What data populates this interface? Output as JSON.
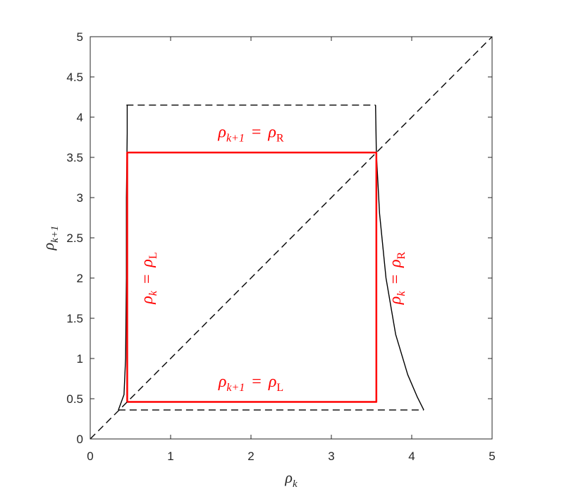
{
  "chart_data": {
    "type": "line",
    "title": "",
    "xlabel": {
      "base": "ρ",
      "sub": "k"
    },
    "ylabel": {
      "base": "ρ",
      "sub": "k+1"
    },
    "xlim": [
      0,
      5
    ],
    "ylim": [
      0,
      5
    ],
    "grid": false,
    "x_ticks": [
      0,
      1,
      2,
      3,
      4,
      5
    ],
    "x_tick_labels": [
      "0",
      "1",
      "2",
      "3",
      "4",
      "5"
    ],
    "y_ticks": [
      0,
      0.5,
      1,
      1.5,
      2,
      2.5,
      3,
      3.5,
      4,
      4.5,
      5
    ],
    "y_tick_labels": [
      "0",
      "0.5",
      "1",
      "1.5",
      "2",
      "2.5",
      "3",
      "3.5",
      "4",
      "4.5",
      "5"
    ],
    "colors": {
      "red_box": "#ff0000",
      "black": "#000000",
      "axis": "#262626"
    },
    "series": [
      {
        "style": "dashed",
        "color": "#000000",
        "x": [
          0,
          5
        ],
        "y": [
          0,
          5
        ]
      },
      {
        "style": "dashed",
        "color": "#000000",
        "x": [
          0.45,
          3.55
        ],
        "y": [
          4.15,
          4.15
        ]
      },
      {
        "style": "dashed",
        "color": "#000000",
        "x": [
          0.35,
          4.15
        ],
        "y": [
          0.36,
          0.36
        ]
      },
      {
        "style": "solid",
        "color": "#000000",
        "x": [
          0.35,
          0.42,
          0.44,
          0.45,
          0.45,
          0.46,
          0.46
        ],
        "y": [
          0.36,
          0.55,
          1.0,
          2.0,
          3.0,
          3.8,
          4.15
        ]
      },
      {
        "style": "solid",
        "color": "#000000",
        "x": [
          3.55,
          3.56,
          3.6,
          3.68,
          3.8,
          3.95,
          4.07,
          4.15
        ],
        "y": [
          4.15,
          3.55,
          2.8,
          2.0,
          1.3,
          0.8,
          0.52,
          0.36
        ]
      },
      {
        "style": "solid",
        "color": "#ff0000",
        "x": [
          0.46,
          3.56,
          3.56,
          0.46,
          0.46
        ],
        "y": [
          0.46,
          0.46,
          3.56,
          3.56,
          0.46
        ]
      }
    ],
    "annotations": [
      {
        "base": "ρ",
        "sub": "k+1",
        "eq": "=",
        "rhs": "ρ",
        "rhs_sub": "R",
        "x": 2.0,
        "y": 3.75,
        "rotate": false
      },
      {
        "base": "ρ",
        "sub": "k+1",
        "eq": "=",
        "rhs": "ρ",
        "rhs_sub": "L",
        "x": 2.0,
        "y": 0.65,
        "rotate": false
      },
      {
        "base": "ρ",
        "sub": "k",
        "eq": "=",
        "rhs": "ρ",
        "rhs_sub": "L",
        "x": 0.77,
        "y": 2.0,
        "rotate": true
      },
      {
        "base": "ρ",
        "sub": "k",
        "eq": "=",
        "rhs": "ρ",
        "rhs_sub": "R",
        "x": 3.86,
        "y": 2.0,
        "rotate": true
      }
    ]
  }
}
